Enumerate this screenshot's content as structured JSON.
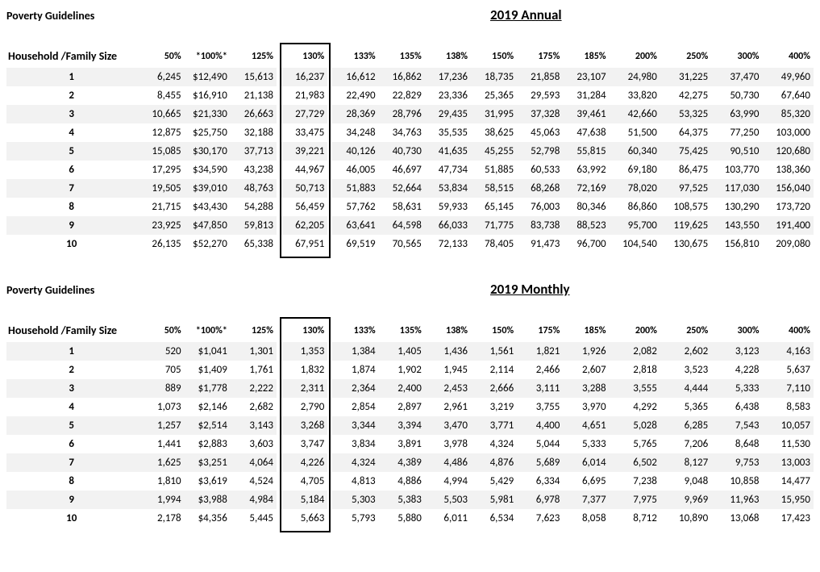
{
  "tables": [
    {
      "guidelines_label": "Poverty Guidelines",
      "year_title": "2019 Annual",
      "hh_header": "Household /Family Size",
      "columns": [
        "50%",
        "*100%*",
        "125%",
        "130%",
        "133%",
        "135%",
        "138%",
        "150%",
        "175%",
        "185%",
        "200%",
        "250%",
        "300%",
        "400%"
      ],
      "highlight_col_index": 3,
      "rows": [
        {
          "hh": "1",
          "v": [
            "6,245",
            "$12,490",
            "15,613",
            "16,237",
            "16,612",
            "16,862",
            "17,236",
            "18,735",
            "21,858",
            "23,107",
            "24,980",
            "31,225",
            "37,470",
            "49,960"
          ]
        },
        {
          "hh": "2",
          "v": [
            "8,455",
            "$16,910",
            "21,138",
            "21,983",
            "22,490",
            "22,829",
            "23,336",
            "25,365",
            "29,593",
            "31,284",
            "33,820",
            "42,275",
            "50,730",
            "67,640"
          ]
        },
        {
          "hh": "3",
          "v": [
            "10,665",
            "$21,330",
            "26,663",
            "27,729",
            "28,369",
            "28,796",
            "29,435",
            "31,995",
            "37,328",
            "39,461",
            "42,660",
            "53,325",
            "63,990",
            "85,320"
          ]
        },
        {
          "hh": "4",
          "v": [
            "12,875",
            "$25,750",
            "32,188",
            "33,475",
            "34,248",
            "34,763",
            "35,535",
            "38,625",
            "45,063",
            "47,638",
            "51,500",
            "64,375",
            "77,250",
            "103,000"
          ]
        },
        {
          "hh": "5",
          "v": [
            "15,085",
            "$30,170",
            "37,713",
            "39,221",
            "40,126",
            "40,730",
            "41,635",
            "45,255",
            "52,798",
            "55,815",
            "60,340",
            "75,425",
            "90,510",
            "120,680"
          ]
        },
        {
          "hh": "6",
          "v": [
            "17,295",
            "$34,590",
            "43,238",
            "44,967",
            "46,005",
            "46,697",
            "47,734",
            "51,885",
            "60,533",
            "63,992",
            "69,180",
            "86,475",
            "103,770",
            "138,360"
          ]
        },
        {
          "hh": "7",
          "v": [
            "19,505",
            "$39,010",
            "48,763",
            "50,713",
            "51,883",
            "52,664",
            "53,834",
            "58,515",
            "68,268",
            "72,169",
            "78,020",
            "97,525",
            "117,030",
            "156,040"
          ]
        },
        {
          "hh": "8",
          "v": [
            "21,715",
            "$43,430",
            "54,288",
            "56,459",
            "57,762",
            "58,631",
            "59,933",
            "65,145",
            "76,003",
            "80,346",
            "86,860",
            "108,575",
            "130,290",
            "173,720"
          ]
        },
        {
          "hh": "9",
          "v": [
            "23,925",
            "$47,850",
            "59,813",
            "62,205",
            "63,641",
            "64,598",
            "66,033",
            "71,775",
            "83,738",
            "88,523",
            "95,700",
            "119,625",
            "143,550",
            "191,400"
          ]
        },
        {
          "hh": "10",
          "v": [
            "26,135",
            "$52,270",
            "65,338",
            "67,951",
            "69,519",
            "70,565",
            "72,133",
            "78,405",
            "91,473",
            "96,700",
            "104,540",
            "130,675",
            "156,810",
            "209,080"
          ]
        }
      ]
    },
    {
      "guidelines_label": "Poverty Guidelines",
      "year_title": "2019 Monthly",
      "hh_header": "Household /Family Size",
      "columns": [
        "50%",
        "*100%*",
        "125%",
        "130%",
        "133%",
        "135%",
        "138%",
        "150%",
        "175%",
        "185%",
        "200%",
        "250%",
        "300%",
        "400%"
      ],
      "highlight_col_index": 3,
      "rows": [
        {
          "hh": "1",
          "v": [
            "520",
            "$1,041",
            "1,301",
            "1,353",
            "1,384",
            "1,405",
            "1,436",
            "1,561",
            "1,821",
            "1,926",
            "2,082",
            "2,602",
            "3,123",
            "4,163"
          ]
        },
        {
          "hh": "2",
          "v": [
            "705",
            "$1,409",
            "1,761",
            "1,832",
            "1,874",
            "1,902",
            "1,945",
            "2,114",
            "2,466",
            "2,607",
            "2,818",
            "3,523",
            "4,228",
            "5,637"
          ]
        },
        {
          "hh": "3",
          "v": [
            "889",
            "$1,778",
            "2,222",
            "2,311",
            "2,364",
            "2,400",
            "2,453",
            "2,666",
            "3,111",
            "3,288",
            "3,555",
            "4,444",
            "5,333",
            "7,110"
          ]
        },
        {
          "hh": "4",
          "v": [
            "1,073",
            "$2,146",
            "2,682",
            "2,790",
            "2,854",
            "2,897",
            "2,961",
            "3,219",
            "3,755",
            "3,970",
            "4,292",
            "5,365",
            "6,438",
            "8,583"
          ]
        },
        {
          "hh": "5",
          "v": [
            "1,257",
            "$2,514",
            "3,143",
            "3,268",
            "3,344",
            "3,394",
            "3,470",
            "3,771",
            "4,400",
            "4,651",
            "5,028",
            "6,285",
            "7,543",
            "10,057"
          ]
        },
        {
          "hh": "6",
          "v": [
            "1,441",
            "$2,883",
            "3,603",
            "3,747",
            "3,834",
            "3,891",
            "3,978",
            "4,324",
            "5,044",
            "5,333",
            "5,765",
            "7,206",
            "8,648",
            "11,530"
          ]
        },
        {
          "hh": "7",
          "v": [
            "1,625",
            "$3,251",
            "4,064",
            "4,226",
            "4,324",
            "4,389",
            "4,486",
            "4,876",
            "5,689",
            "6,014",
            "6,502",
            "8,127",
            "9,753",
            "13,003"
          ]
        },
        {
          "hh": "8",
          "v": [
            "1,810",
            "$3,619",
            "4,524",
            "4,705",
            "4,813",
            "4,886",
            "4,994",
            "5,429",
            "6,334",
            "6,695",
            "7,238",
            "9,048",
            "10,858",
            "14,477"
          ]
        },
        {
          "hh": "9",
          "v": [
            "1,994",
            "$3,988",
            "4,984",
            "5,184",
            "5,303",
            "5,383",
            "5,503",
            "5,981",
            "6,978",
            "7,377",
            "7,975",
            "9,969",
            "11,963",
            "15,950"
          ]
        },
        {
          "hh": "10",
          "v": [
            "2,178",
            "$4,356",
            "5,445",
            "5,663",
            "5,793",
            "5,880",
            "6,011",
            "6,534",
            "7,623",
            "8,058",
            "8,712",
            "10,890",
            "13,068",
            "17,423"
          ]
        }
      ]
    }
  ],
  "style": {
    "background_color": "#ffffff",
    "row_stripe_color": "#f2f2f2",
    "highlight_border_color": "#000000",
    "text_color": "#000000",
    "font_family": "Calibri, Arial, sans-serif"
  }
}
